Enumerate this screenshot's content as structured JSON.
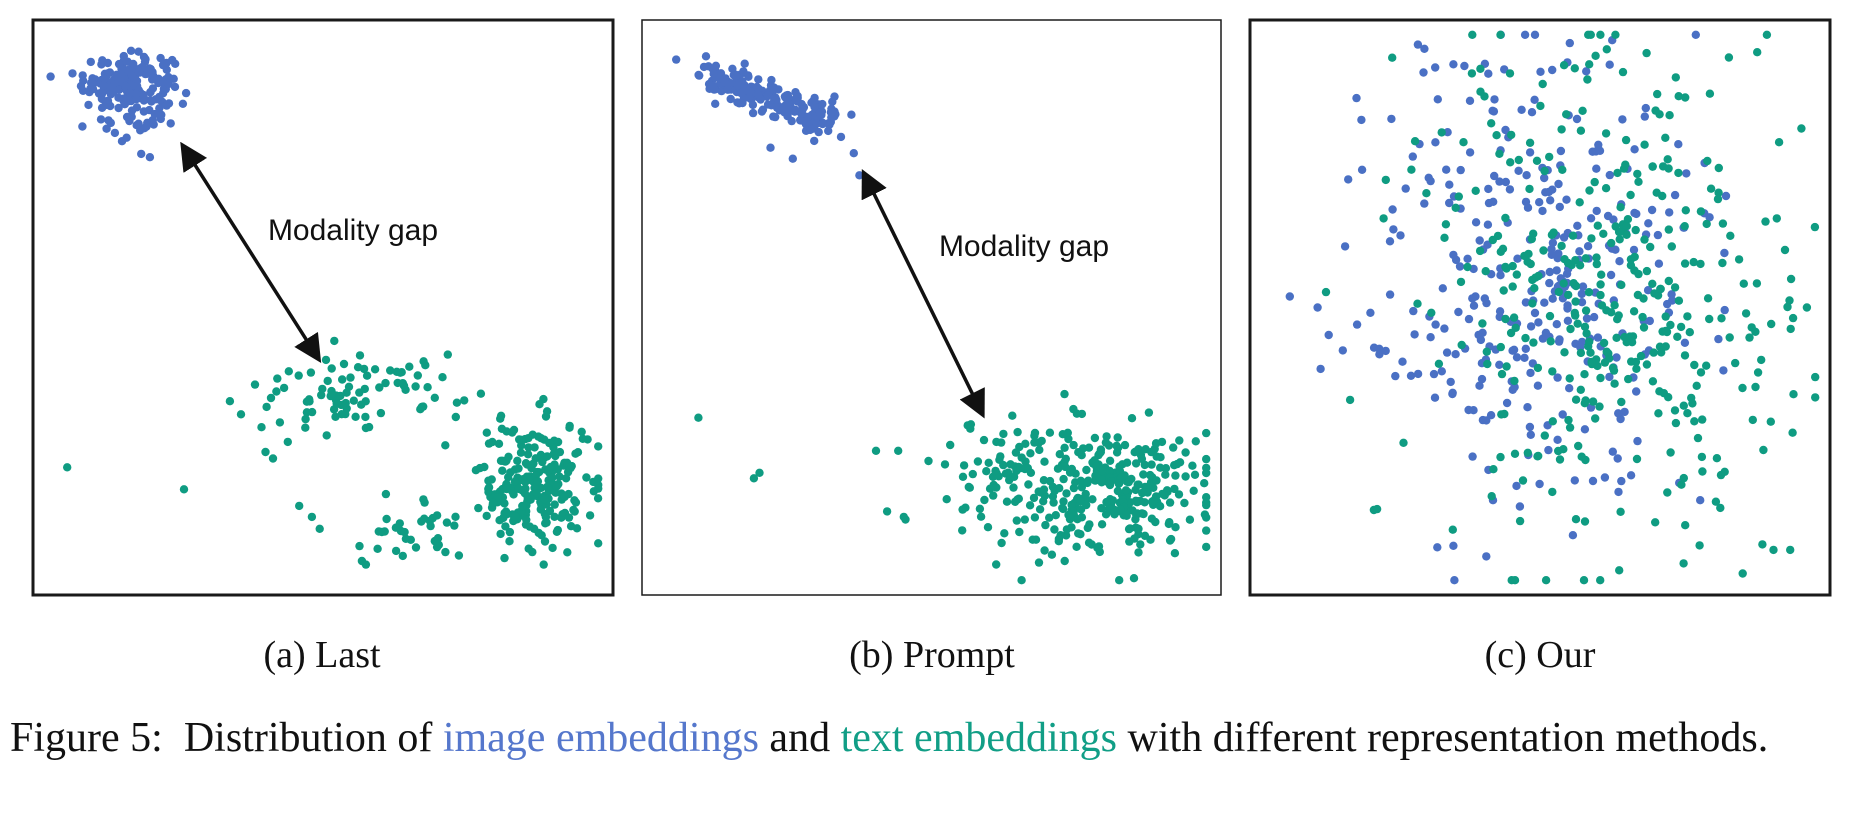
{
  "colors": {
    "image": "#4a70c4",
    "text": "#0f9c82",
    "image_label": "#5577cc",
    "text_label": "#119e86",
    "arrow": "#111111"
  },
  "panels": [
    {
      "id": "a",
      "caption": "(a) Last",
      "annotation": "Modality gap"
    },
    {
      "id": "b",
      "caption": "(b) Prompt",
      "annotation": "Modality gap"
    },
    {
      "id": "c",
      "caption": "(c) Our",
      "annotation": ""
    }
  ],
  "figure_caption": {
    "prefix": "Figure 5:  Distribution of ",
    "image_term": "image embeddings",
    "middle": " and ",
    "text_term": "text embeddings",
    "suffix": " with different representation methods."
  },
  "chart_data": [
    {
      "type": "scatter",
      "title": "(a) Last",
      "series": [
        {
          "name": "image embeddings",
          "color": "#4a70c4",
          "clusters": [
            {
              "cx": 0.15,
              "cy": 0.91,
              "sx": 0.04,
              "sy": 0.025,
              "n": 180
            },
            {
              "cx": 0.17,
              "cy": 0.83,
              "sx": 0.05,
              "sy": 0.025,
              "n": 28
            }
          ]
        },
        {
          "name": "text embeddings",
          "color": "#0f9c82",
          "clusters": [
            {
              "cx": 0.57,
              "cy": 0.35,
              "sx": 0.09,
              "sy": 0.03,
              "n": 75
            },
            {
              "cx": 0.88,
              "cy": 0.18,
              "sx": 0.05,
              "sy": 0.06,
              "n": 230
            },
            {
              "cx": 0.66,
              "cy": 0.1,
              "sx": 0.07,
              "sy": 0.03,
              "n": 35
            },
            {
              "cx": 0.4,
              "cy": 0.3,
              "sx": 0.08,
              "sy": 0.03,
              "n": 14
            }
          ],
          "outliers": [
            [
              0.04,
              0.21
            ],
            [
              0.25,
              0.17
            ],
            [
              0.48,
              0.12
            ],
            [
              0.72,
              0.25
            ],
            [
              0.57,
              0.04
            ]
          ]
        }
      ],
      "annotation": {
        "text": "Modality gap",
        "arrow_from": [
          0.25,
          0.79
        ],
        "arrow_to": [
          0.49,
          0.41
        ]
      },
      "xlim": [
        0,
        1
      ],
      "ylim": [
        0,
        1
      ]
    },
    {
      "type": "scatter",
      "title": "(b) Prompt",
      "series": [
        {
          "name": "image embeddings",
          "color": "#4a70c4",
          "band": {
            "from": [
              0.09,
              0.92
            ],
            "to": [
              0.33,
              0.84
            ],
            "width": 0.035,
            "n": 220
          },
          "outliers": [
            [
              0.04,
              0.95
            ],
            [
              0.21,
              0.79
            ],
            [
              0.25,
              0.77
            ],
            [
              0.36,
              0.78
            ],
            [
              0.37,
              0.74
            ]
          ]
        },
        {
          "name": "text embeddings",
          "color": "#0f9c82",
          "clusters": [
            {
              "cx": 0.79,
              "cy": 0.17,
              "sx": 0.11,
              "sy": 0.055,
              "n": 330
            },
            {
              "cx": 0.62,
              "cy": 0.21,
              "sx": 0.05,
              "sy": 0.05,
              "n": 30
            }
          ],
          "outliers": [
            [
              0.08,
              0.3
            ],
            [
              0.19,
              0.2
            ],
            [
              0.18,
              0.19
            ],
            [
              0.4,
              0.24
            ],
            [
              0.44,
              0.24
            ],
            [
              0.42,
              0.13
            ],
            [
              0.45,
              0.12
            ],
            [
              0.57,
              0.28
            ],
            [
              0.74,
              0.04
            ]
          ]
        }
      ],
      "annotation": {
        "text": "Modality gap",
        "arrow_from": [
          0.38,
          0.74
        ],
        "arrow_to": [
          0.59,
          0.31
        ]
      },
      "xlim": [
        0,
        1
      ],
      "ylim": [
        0,
        1
      ]
    },
    {
      "type": "scatter",
      "title": "(c) Our",
      "series": [
        {
          "name": "image embeddings",
          "color": "#4a70c4",
          "clusters": [
            {
              "cx": 0.5,
              "cy": 0.55,
              "sx": 0.15,
              "sy": 0.22,
              "n": 330
            }
          ],
          "outliers": [
            [
              0.05,
              0.52
            ],
            [
              0.1,
              0.5
            ],
            [
              0.12,
              0.45
            ],
            [
              0.17,
              0.88
            ],
            [
              0.18,
              0.75
            ]
          ]
        },
        {
          "name": "text embeddings",
          "color": "#0f9c82",
          "clusters": [
            {
              "cx": 0.6,
              "cy": 0.52,
              "sx": 0.17,
              "sy": 0.22,
              "n": 380
            }
          ],
          "outliers": [
            [
              0.9,
              0.07
            ],
            [
              0.92,
              0.06
            ],
            [
              0.95,
              0.06
            ],
            [
              0.98,
              0.5
            ],
            [
              0.93,
              0.8
            ]
          ]
        }
      ],
      "xlim": [
        0,
        1
      ],
      "ylim": [
        0,
        1
      ]
    }
  ]
}
